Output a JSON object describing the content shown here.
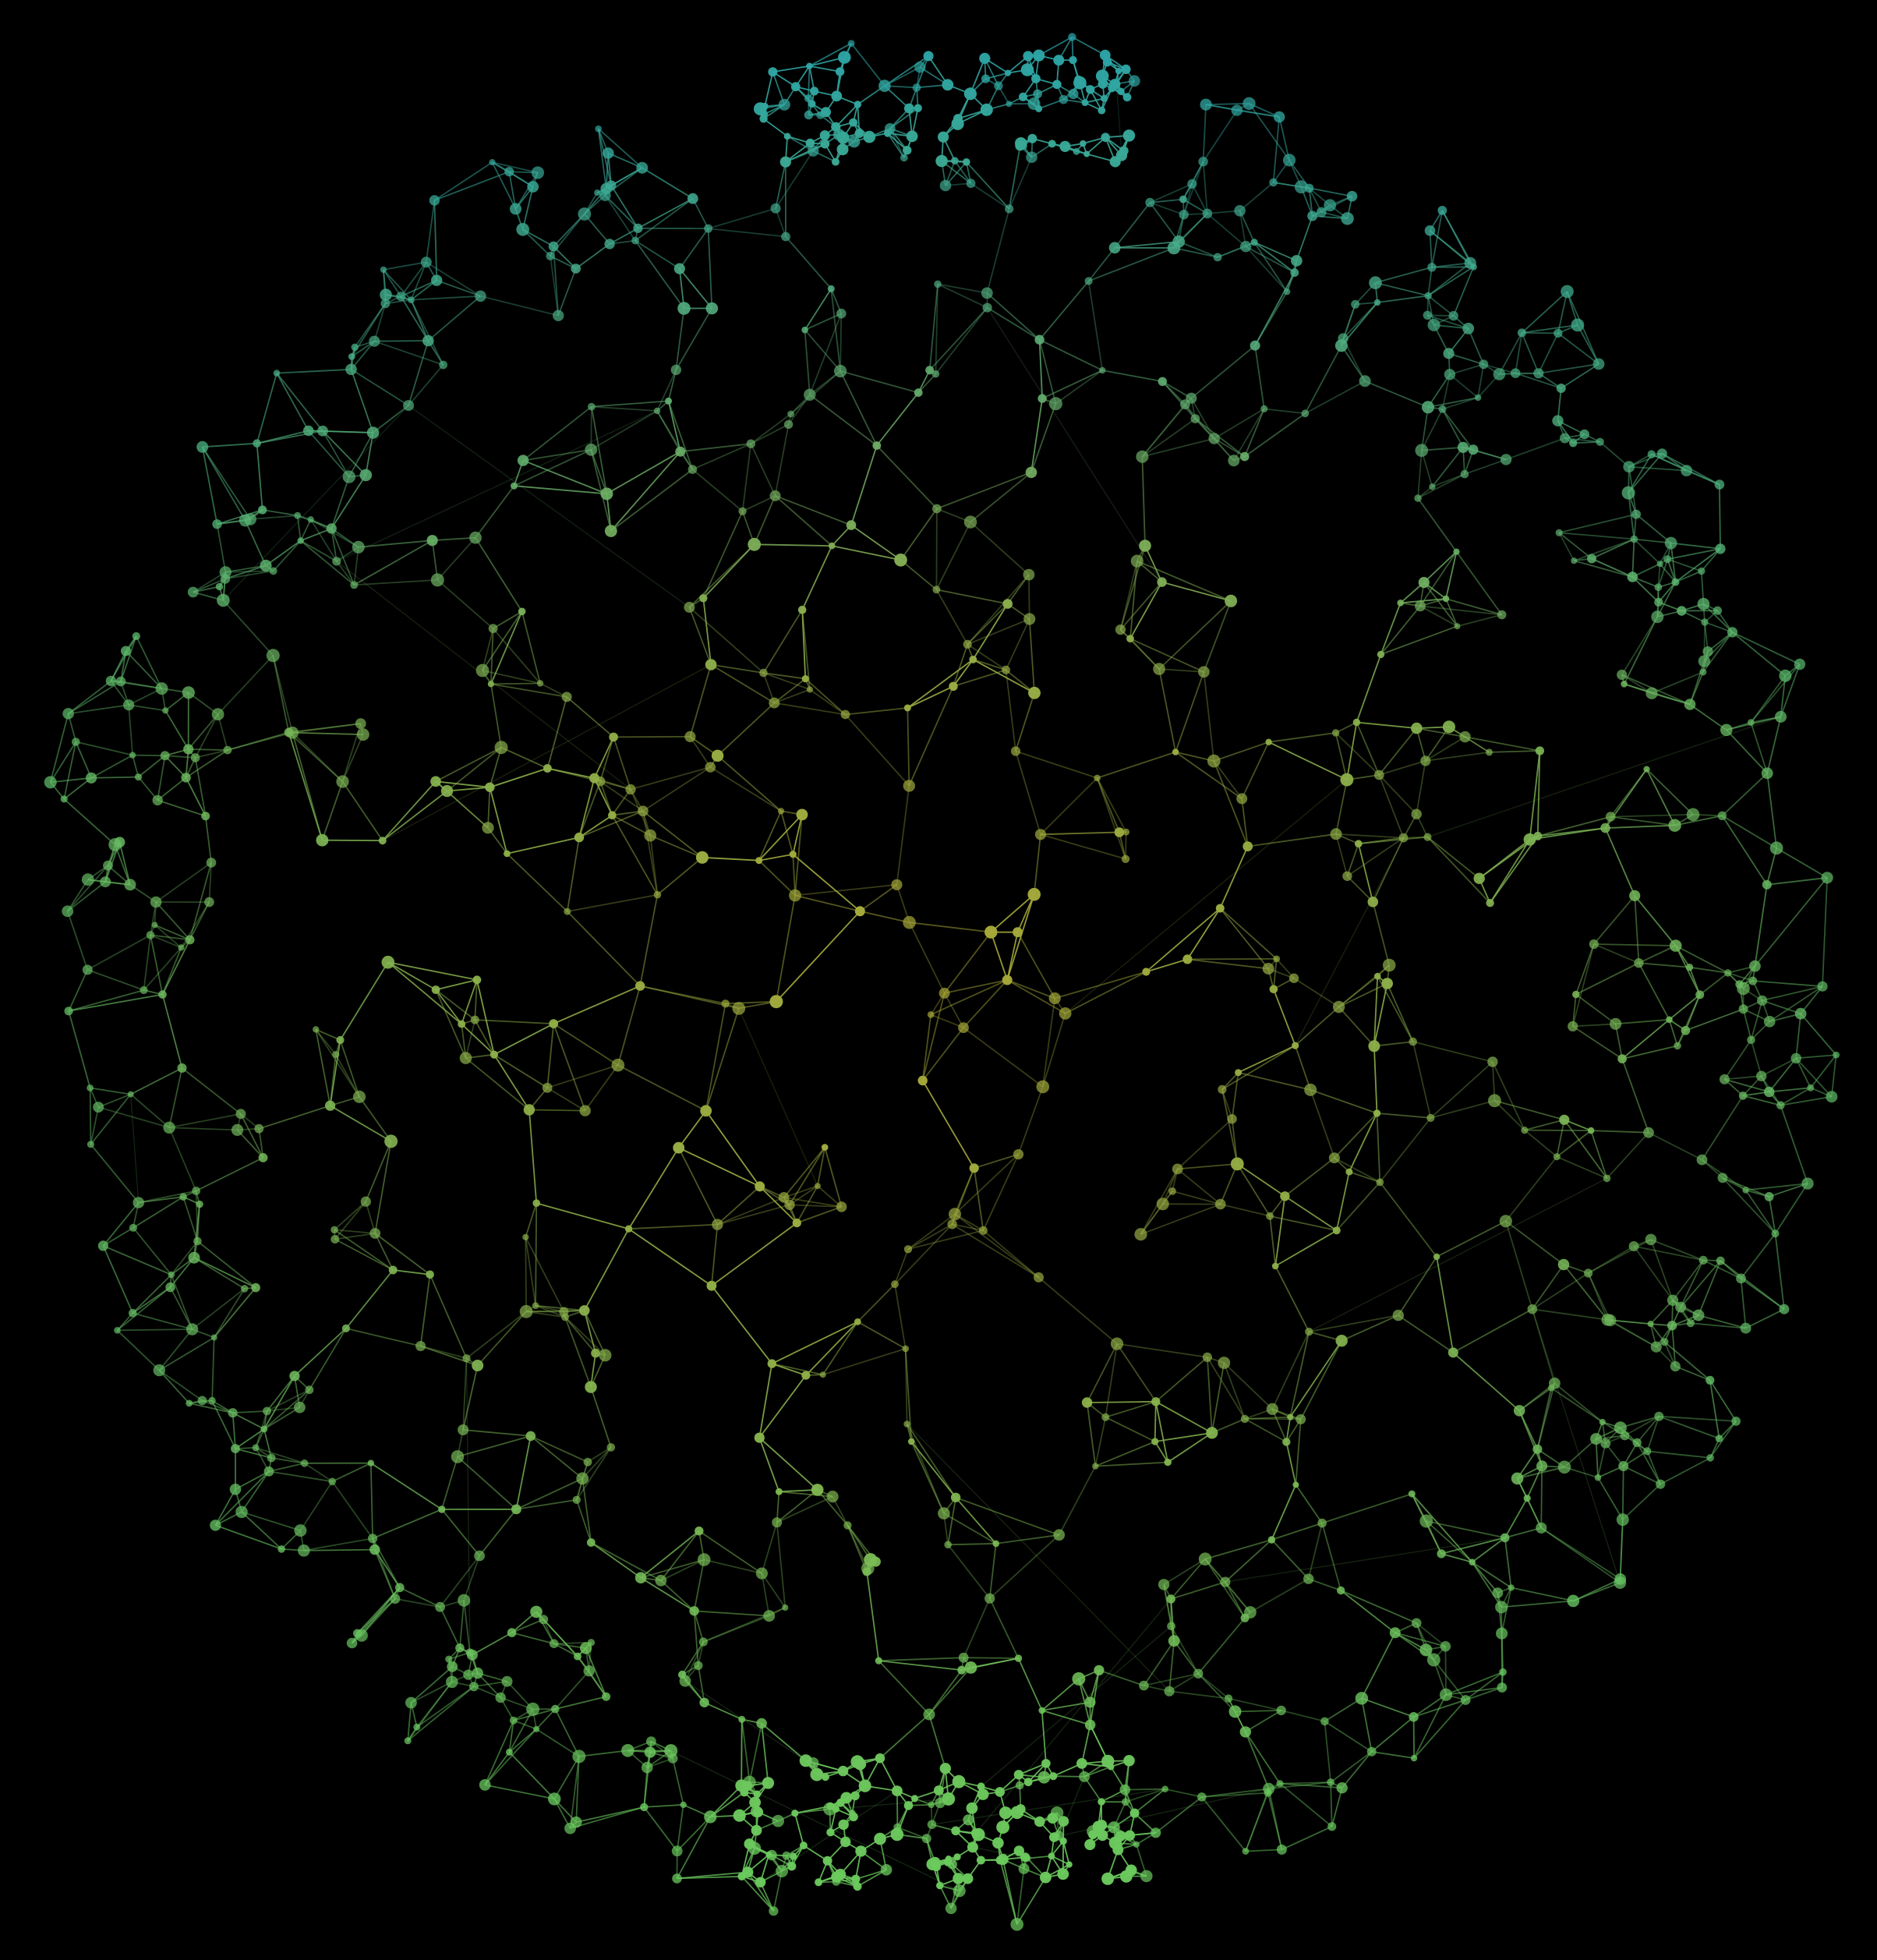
{
  "diagram": {
    "type": "network-graph",
    "layout": "sphere",
    "background_color": "#000000",
    "palette": {
      "top": "#2aa3a8",
      "edge": "#5fbf6a",
      "center": "#a8a838",
      "bottom": "#6ccc5c"
    },
    "node_count_estimate": 900,
    "labels": []
  }
}
